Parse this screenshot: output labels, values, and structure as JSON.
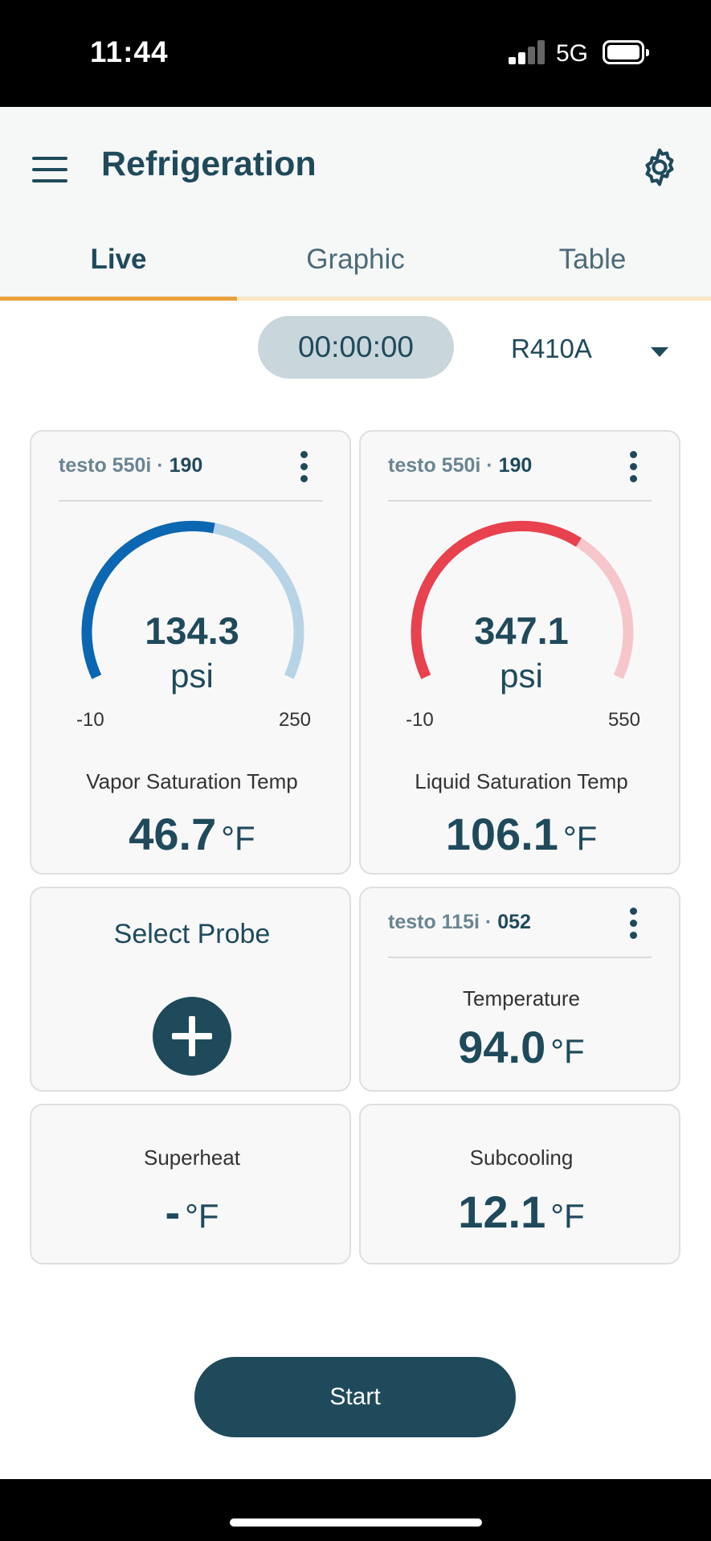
{
  "status_bar": {
    "time": "11:44",
    "network": "5G"
  },
  "header": {
    "title": "Refrigeration"
  },
  "tabs": [
    {
      "label": "Live",
      "active": true
    },
    {
      "label": "Graphic",
      "active": false
    },
    {
      "label": "Table",
      "active": false
    }
  ],
  "session": {
    "timer": "00:00:00",
    "refrigerant": "R410A"
  },
  "cards": {
    "vapor": {
      "device": "testo 550i",
      "separator": "·",
      "serial": "190",
      "gauge_value": "134.3",
      "gauge_unit": "psi",
      "gauge_min": "-10",
      "gauge_max": "250",
      "gauge_fraction": 0.55,
      "gauge_color": "#0b67b2",
      "gauge_track": "#b7d4e6",
      "label": "Vapor Saturation Temp",
      "value": "46.7",
      "unit": "°F"
    },
    "liquid": {
      "device": "testo 550i",
      "separator": "·",
      "serial": "190",
      "gauge_value": "347.1",
      "gauge_unit": "psi",
      "gauge_min": "-10",
      "gauge_max": "550",
      "gauge_fraction": 0.64,
      "gauge_color": "#e8424f",
      "gauge_track": "#f6c6ca",
      "label": "Liquid Saturation Temp",
      "value": "106.1",
      "unit": "°F"
    },
    "select_probe": {
      "label": "Select Probe"
    },
    "temperature": {
      "device": "testo 115i",
      "separator": "·",
      "serial": "052",
      "label": "Temperature",
      "value": "94.0",
      "unit": "°F"
    },
    "superheat": {
      "label": "Superheat",
      "value": "-",
      "unit": "°F"
    },
    "subcooling": {
      "label": "Subcooling",
      "value": "12.1",
      "unit": "°F"
    }
  },
  "actions": {
    "start_label": "Start"
  },
  "icons": [
    "menu-icon",
    "gear-icon",
    "chevron-down-icon",
    "more-vertical-icon",
    "plus-icon"
  ]
}
